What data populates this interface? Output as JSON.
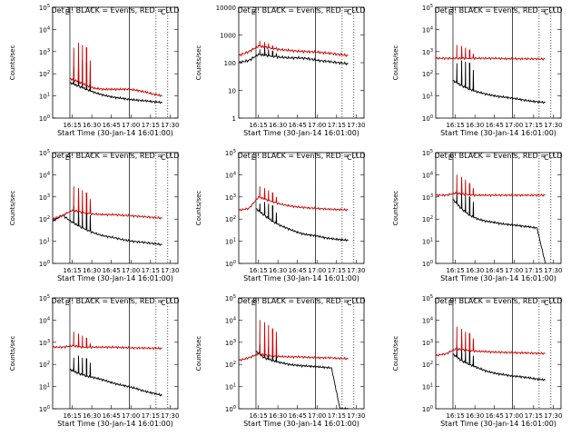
{
  "figure": {
    "xlabel_template": "Start Time (30-Jan-14 16:01:00)",
    "ylabel": "Counts/sec"
  },
  "chart_data": [
    {
      "type": "line",
      "title": "Det 1: BLACK = Events, RED = LLD",
      "xlabel": "Start Time (30-Jan-14 16:01:00)",
      "ylabel": "Counts/sec",
      "yscale": "log",
      "ylim": [
        1,
        100000
      ],
      "ytick_labels": [
        "10^0",
        "10^1",
        "10^2",
        "10^3",
        "10^4",
        "10^5"
      ],
      "xticks": [
        "16:15",
        "16:30",
        "16:45",
        "17:00",
        "17:15",
        "17:30"
      ],
      "flags": [
        "E",
        "C"
      ],
      "series": [
        {
          "name": "BLACK = Events",
          "color": "#000000",
          "start": "16:13",
          "base": [
            40,
            28,
            20,
            14,
            11,
            9,
            8,
            7,
            6.5,
            6,
            5.5,
            5
          ],
          "spikes": [
            [
              16.27,
              200
            ],
            [
              16.33,
              350
            ],
            [
              16.38,
              400
            ],
            [
              16.43,
              300
            ],
            [
              16.48,
              120
            ]
          ]
        },
        {
          "name": "RED = LLD",
          "color": "#cc0000",
          "start": "16:13",
          "base": [
            60,
            45,
            30,
            22,
            20,
            20,
            20,
            20,
            18,
            15,
            12,
            10
          ],
          "spikes": [
            [
              16.27,
              1500
            ],
            [
              16.33,
              2500
            ],
            [
              16.38,
              2000
            ],
            [
              16.43,
              1500
            ],
            [
              16.48,
              400
            ]
          ]
        }
      ]
    },
    {
      "type": "line",
      "title": "Det 2: BLACK = Events, RED = LLD",
      "xlabel": "Start Time (30-Jan-14 16:01:00)",
      "ylabel": "Counts/sec",
      "yscale": "log",
      "ylim": [
        1,
        10000
      ],
      "ytick_labels": [
        "1",
        "10",
        "100",
        "1000",
        "10000"
      ],
      "xticks": [
        "16:15",
        "16:30",
        "16:45",
        "17:00",
        "17:15",
        "17:30"
      ],
      "flags": [
        "E",
        "C"
      ],
      "series": [
        {
          "name": "BLACK = Events",
          "color": "#000000",
          "start": "16:00",
          "base": [
            100,
            120,
            200,
            180,
            160,
            150,
            150,
            140,
            120,
            110,
            100,
            90
          ],
          "spikes": [
            [
              16.27,
              300
            ],
            [
              16.33,
              350
            ],
            [
              16.38,
              300
            ],
            [
              16.43,
              260
            ],
            [
              16.48,
              220
            ]
          ]
        },
        {
          "name": "RED = LLD",
          "color": "#cc0000",
          "start": "16:00",
          "base": [
            180,
            250,
            400,
            350,
            300,
            280,
            260,
            250,
            240,
            220,
            200,
            180
          ],
          "spikes": [
            [
              16.27,
              600
            ],
            [
              16.33,
              550
            ],
            [
              16.38,
              500
            ],
            [
              16.43,
              400
            ],
            [
              16.48,
              350
            ]
          ]
        }
      ]
    },
    {
      "type": "line",
      "title": "Det 3: BLACK = Events, RED = LLD",
      "xlabel": "Start Time (30-Jan-14 16:01:00)",
      "ylabel": "Counts/sec",
      "yscale": "log",
      "ylim": [
        1,
        100000
      ],
      "ytick_labels": [
        "10^0",
        "10^1",
        "10^2",
        "10^3",
        "10^4",
        "10^5"
      ],
      "xticks": [
        "16:15",
        "16:30",
        "16:45",
        "17:00",
        "17:15",
        "17:30"
      ],
      "flags": [
        "E",
        "C"
      ],
      "series": [
        {
          "name": "BLACK = Events",
          "color": "#000000",
          "start": "16:13",
          "base": [
            50,
            30,
            20,
            15,
            12,
            10,
            9,
            8,
            7,
            6,
            5.5,
            5
          ],
          "spikes": [
            [
              16.27,
              300
            ],
            [
              16.33,
              400
            ],
            [
              16.38,
              350
            ],
            [
              16.43,
              300
            ],
            [
              16.48,
              150
            ]
          ]
        },
        {
          "name": "RED = LLD",
          "color": "#cc0000",
          "start": "16:00",
          "base": [
            500,
            500,
            500,
            500,
            500,
            500,
            500,
            480,
            480,
            470,
            470,
            460
          ],
          "spikes": [
            [
              16.27,
              2000
            ],
            [
              16.33,
              1800
            ],
            [
              16.38,
              1500
            ],
            [
              16.43,
              1200
            ],
            [
              16.48,
              800
            ]
          ]
        }
      ]
    },
    {
      "type": "line",
      "title": "Det 4: BLACK = Events, RED = LLD",
      "xlabel": "Start Time (30-Jan-14 16:01:00)",
      "ylabel": "Counts/sec",
      "yscale": "log",
      "ylim": [
        1,
        100000
      ],
      "ytick_labels": [
        "10^0",
        "10^1",
        "10^2",
        "10^3",
        "10^4",
        "10^5"
      ],
      "xticks": [
        "16:15",
        "16:30",
        "16:45",
        "17:00",
        "17:15",
        "17:30"
      ],
      "flags": [
        "E",
        "C"
      ],
      "series": [
        {
          "name": "BLACK = Events",
          "color": "#000000",
          "start": "16:00",
          "base": [
            80,
            150,
            70,
            40,
            25,
            18,
            15,
            12,
            10,
            9,
            8,
            7
          ],
          "spikes": [
            [
              16.27,
              400
            ],
            [
              16.33,
              350
            ],
            [
              16.38,
              300
            ],
            [
              16.43,
              250
            ],
            [
              16.48,
              150
            ]
          ]
        },
        {
          "name": "RED = LLD",
          "color": "#cc0000",
          "start": "16:00",
          "base": [
            100,
            150,
            250,
            200,
            170,
            160,
            160,
            150,
            140,
            130,
            120,
            110
          ],
          "spikes": [
            [
              16.27,
              3000
            ],
            [
              16.33,
              2500
            ],
            [
              16.38,
              2000
            ],
            [
              16.43,
              1500
            ],
            [
              16.48,
              800
            ]
          ]
        }
      ]
    },
    {
      "type": "line",
      "title": "Det 5: BLACK = Events, RED = LLD",
      "xlabel": "Start Time (30-Jan-14 16:01:00)",
      "ylabel": "Counts/sec",
      "yscale": "log",
      "ylim": [
        1,
        100000
      ],
      "ytick_labels": [
        "10^0",
        "10^1",
        "10^2",
        "10^3",
        "10^4",
        "10^5"
      ],
      "xticks": [
        "16:15",
        "16:30",
        "16:45",
        "17:00",
        "17:15",
        "17:30"
      ],
      "flags": [
        "E",
        "C"
      ],
      "series": [
        {
          "name": "BLACK = Events",
          "color": "#000000",
          "start": "16:13",
          "base": [
            300,
            150,
            80,
            50,
            35,
            25,
            20,
            18,
            15,
            13,
            12,
            11
          ],
          "spikes": [
            [
              16.27,
              500
            ],
            [
              16.33,
              600
            ],
            [
              16.38,
              500
            ],
            [
              16.43,
              400
            ],
            [
              16.48,
              200
            ]
          ]
        },
        {
          "name": "RED = LLD",
          "color": "#cc0000",
          "start": "16:00",
          "base": [
            250,
            300,
            1000,
            700,
            500,
            400,
            350,
            320,
            300,
            280,
            270,
            260
          ],
          "spikes": [
            [
              16.27,
              3000
            ],
            [
              16.33,
              2500
            ],
            [
              16.38,
              2000
            ],
            [
              16.43,
              1500
            ],
            [
              16.48,
              1000
            ]
          ]
        }
      ]
    },
    {
      "type": "line",
      "title": "Det 6: BLACK = Events, RED = LLD",
      "xlabel": "Start Time (30-Jan-14 16:01:00)",
      "ylabel": "Counts/sec",
      "yscale": "log",
      "ylim": [
        1,
        100000
      ],
      "ytick_labels": [
        "10^0",
        "10^1",
        "10^2",
        "10^3",
        "10^4",
        "10^5"
      ],
      "xticks": [
        "16:15",
        "16:30",
        "16:45",
        "17:00",
        "17:15",
        "17:30"
      ],
      "flags": [
        "E",
        "C"
      ],
      "series": [
        {
          "name": "BLACK = Events",
          "color": "#000000",
          "start": "16:13",
          "base": [
            800,
            300,
            150,
            100,
            80,
            70,
            60,
            55,
            50,
            45,
            40,
            1
          ],
          "spikes": [
            [
              16.27,
              2000
            ],
            [
              16.33,
              1500
            ],
            [
              16.38,
              1200
            ],
            [
              16.43,
              1000
            ],
            [
              16.48,
              600
            ]
          ]
        },
        {
          "name": "RED = LLD",
          "color": "#cc0000",
          "start": "16:00",
          "base": [
            1200,
            1200,
            1500,
            1300,
            1200,
            1200,
            1200,
            1200,
            1200,
            1200,
            1200,
            1200
          ],
          "spikes": [
            [
              16.27,
              10000
            ],
            [
              16.33,
              8000
            ],
            [
              16.38,
              6000
            ],
            [
              16.43,
              4000
            ],
            [
              16.48,
              2500
            ]
          ]
        }
      ]
    },
    {
      "type": "line",
      "title": "Det 7: BLACK = Events, RED = LLD",
      "xlabel": "Start Time (30-Jan-14 16:01:00)",
      "ylabel": "Counts/sec",
      "yscale": "log",
      "ylim": [
        1,
        100000
      ],
      "ytick_labels": [
        "10^0",
        "10^1",
        "10^2",
        "10^3",
        "10^4",
        "10^5"
      ],
      "xticks": [
        "16:15",
        "16:30",
        "16:45",
        "17:00",
        "17:15",
        "17:30"
      ],
      "flags": [
        "E",
        "C"
      ],
      "series": [
        {
          "name": "BLACK = Events",
          "color": "#000000",
          "start": "16:13",
          "base": [
            60,
            40,
            30,
            25,
            20,
            15,
            12,
            10,
            8,
            6,
            5,
            4
          ],
          "spikes": [
            [
              16.27,
              200
            ],
            [
              16.33,
              250
            ],
            [
              16.38,
              200
            ],
            [
              16.43,
              180
            ],
            [
              16.48,
              120
            ]
          ]
        },
        {
          "name": "RED = LLD",
          "color": "#cc0000",
          "start": "16:00",
          "base": [
            600,
            600,
            700,
            600,
            600,
            600,
            600,
            580,
            560,
            550,
            540,
            530
          ],
          "spikes": [
            [
              16.27,
              3000
            ],
            [
              16.33,
              2500
            ],
            [
              16.38,
              2000
            ],
            [
              16.43,
              1500
            ],
            [
              16.48,
              900
            ]
          ]
        }
      ]
    },
    {
      "type": "line",
      "title": "Det 8: BLACK = Events, RED = LLD",
      "xlabel": "Start Time (30-Jan-14 16:01:00)",
      "ylabel": "Counts/sec",
      "yscale": "log",
      "ylim": [
        1,
        100000
      ],
      "ytick_labels": [
        "10^0",
        "10^1",
        "10^2",
        "10^3",
        "10^4",
        "10^5"
      ],
      "xticks": [
        "16:15",
        "16:30",
        "16:45",
        "17:00",
        "17:15",
        "17:30"
      ],
      "flags": [
        "E",
        "C"
      ],
      "series": [
        {
          "name": "BLACK = Events",
          "color": "#000000",
          "start": "16:13",
          "base": [
            400,
            200,
            150,
            120,
            100,
            90,
            85,
            80,
            75,
            70,
            1,
            1
          ],
          "spikes": [
            [
              16.27,
              800
            ],
            [
              16.33,
              700
            ],
            [
              16.38,
              600
            ],
            [
              16.43,
              500
            ],
            [
              16.48,
              300
            ]
          ]
        },
        {
          "name": "RED = LLD",
          "color": "#cc0000",
          "start": "16:00",
          "base": [
            150,
            200,
            300,
            250,
            230,
            220,
            220,
            210,
            200,
            200,
            190,
            180
          ],
          "spikes": [
            [
              16.27,
              10000
            ],
            [
              16.33,
              8000
            ],
            [
              16.38,
              6000
            ],
            [
              16.43,
              4000
            ],
            [
              16.48,
              3000
            ]
          ]
        }
      ]
    },
    {
      "type": "line",
      "title": "Det 9: BLACK = Events, RED = LLD",
      "xlabel": "Start Time (30-Jan-14 16:01:00)",
      "ylabel": "Counts/sec",
      "yscale": "log",
      "ylim": [
        1,
        100000
      ],
      "ytick_labels": [
        "10^0",
        "10^1",
        "10^2",
        "10^3",
        "10^4",
        "10^5"
      ],
      "xticks": [
        "16:15",
        "16:30",
        "16:45",
        "17:00",
        "17:15",
        "17:30"
      ],
      "flags": [
        "E",
        "C"
      ],
      "series": [
        {
          "name": "BLACK = Events",
          "color": "#000000",
          "start": "16:13",
          "base": [
            300,
            150,
            100,
            70,
            50,
            40,
            35,
            30,
            28,
            25,
            22,
            20
          ],
          "spikes": [
            [
              16.27,
              700
            ],
            [
              16.33,
              600
            ],
            [
              16.38,
              500
            ],
            [
              16.43,
              400
            ],
            [
              16.48,
              250
            ]
          ]
        },
        {
          "name": "RED = LLD",
          "color": "#cc0000",
          "start": "16:00",
          "base": [
            250,
            300,
            500,
            450,
            400,
            380,
            360,
            350,
            340,
            330,
            320,
            310
          ],
          "spikes": [
            [
              16.27,
              5000
            ],
            [
              16.33,
              4000
            ],
            [
              16.38,
              3000
            ],
            [
              16.43,
              2500
            ],
            [
              16.48,
              1500
            ]
          ]
        }
      ]
    }
  ]
}
